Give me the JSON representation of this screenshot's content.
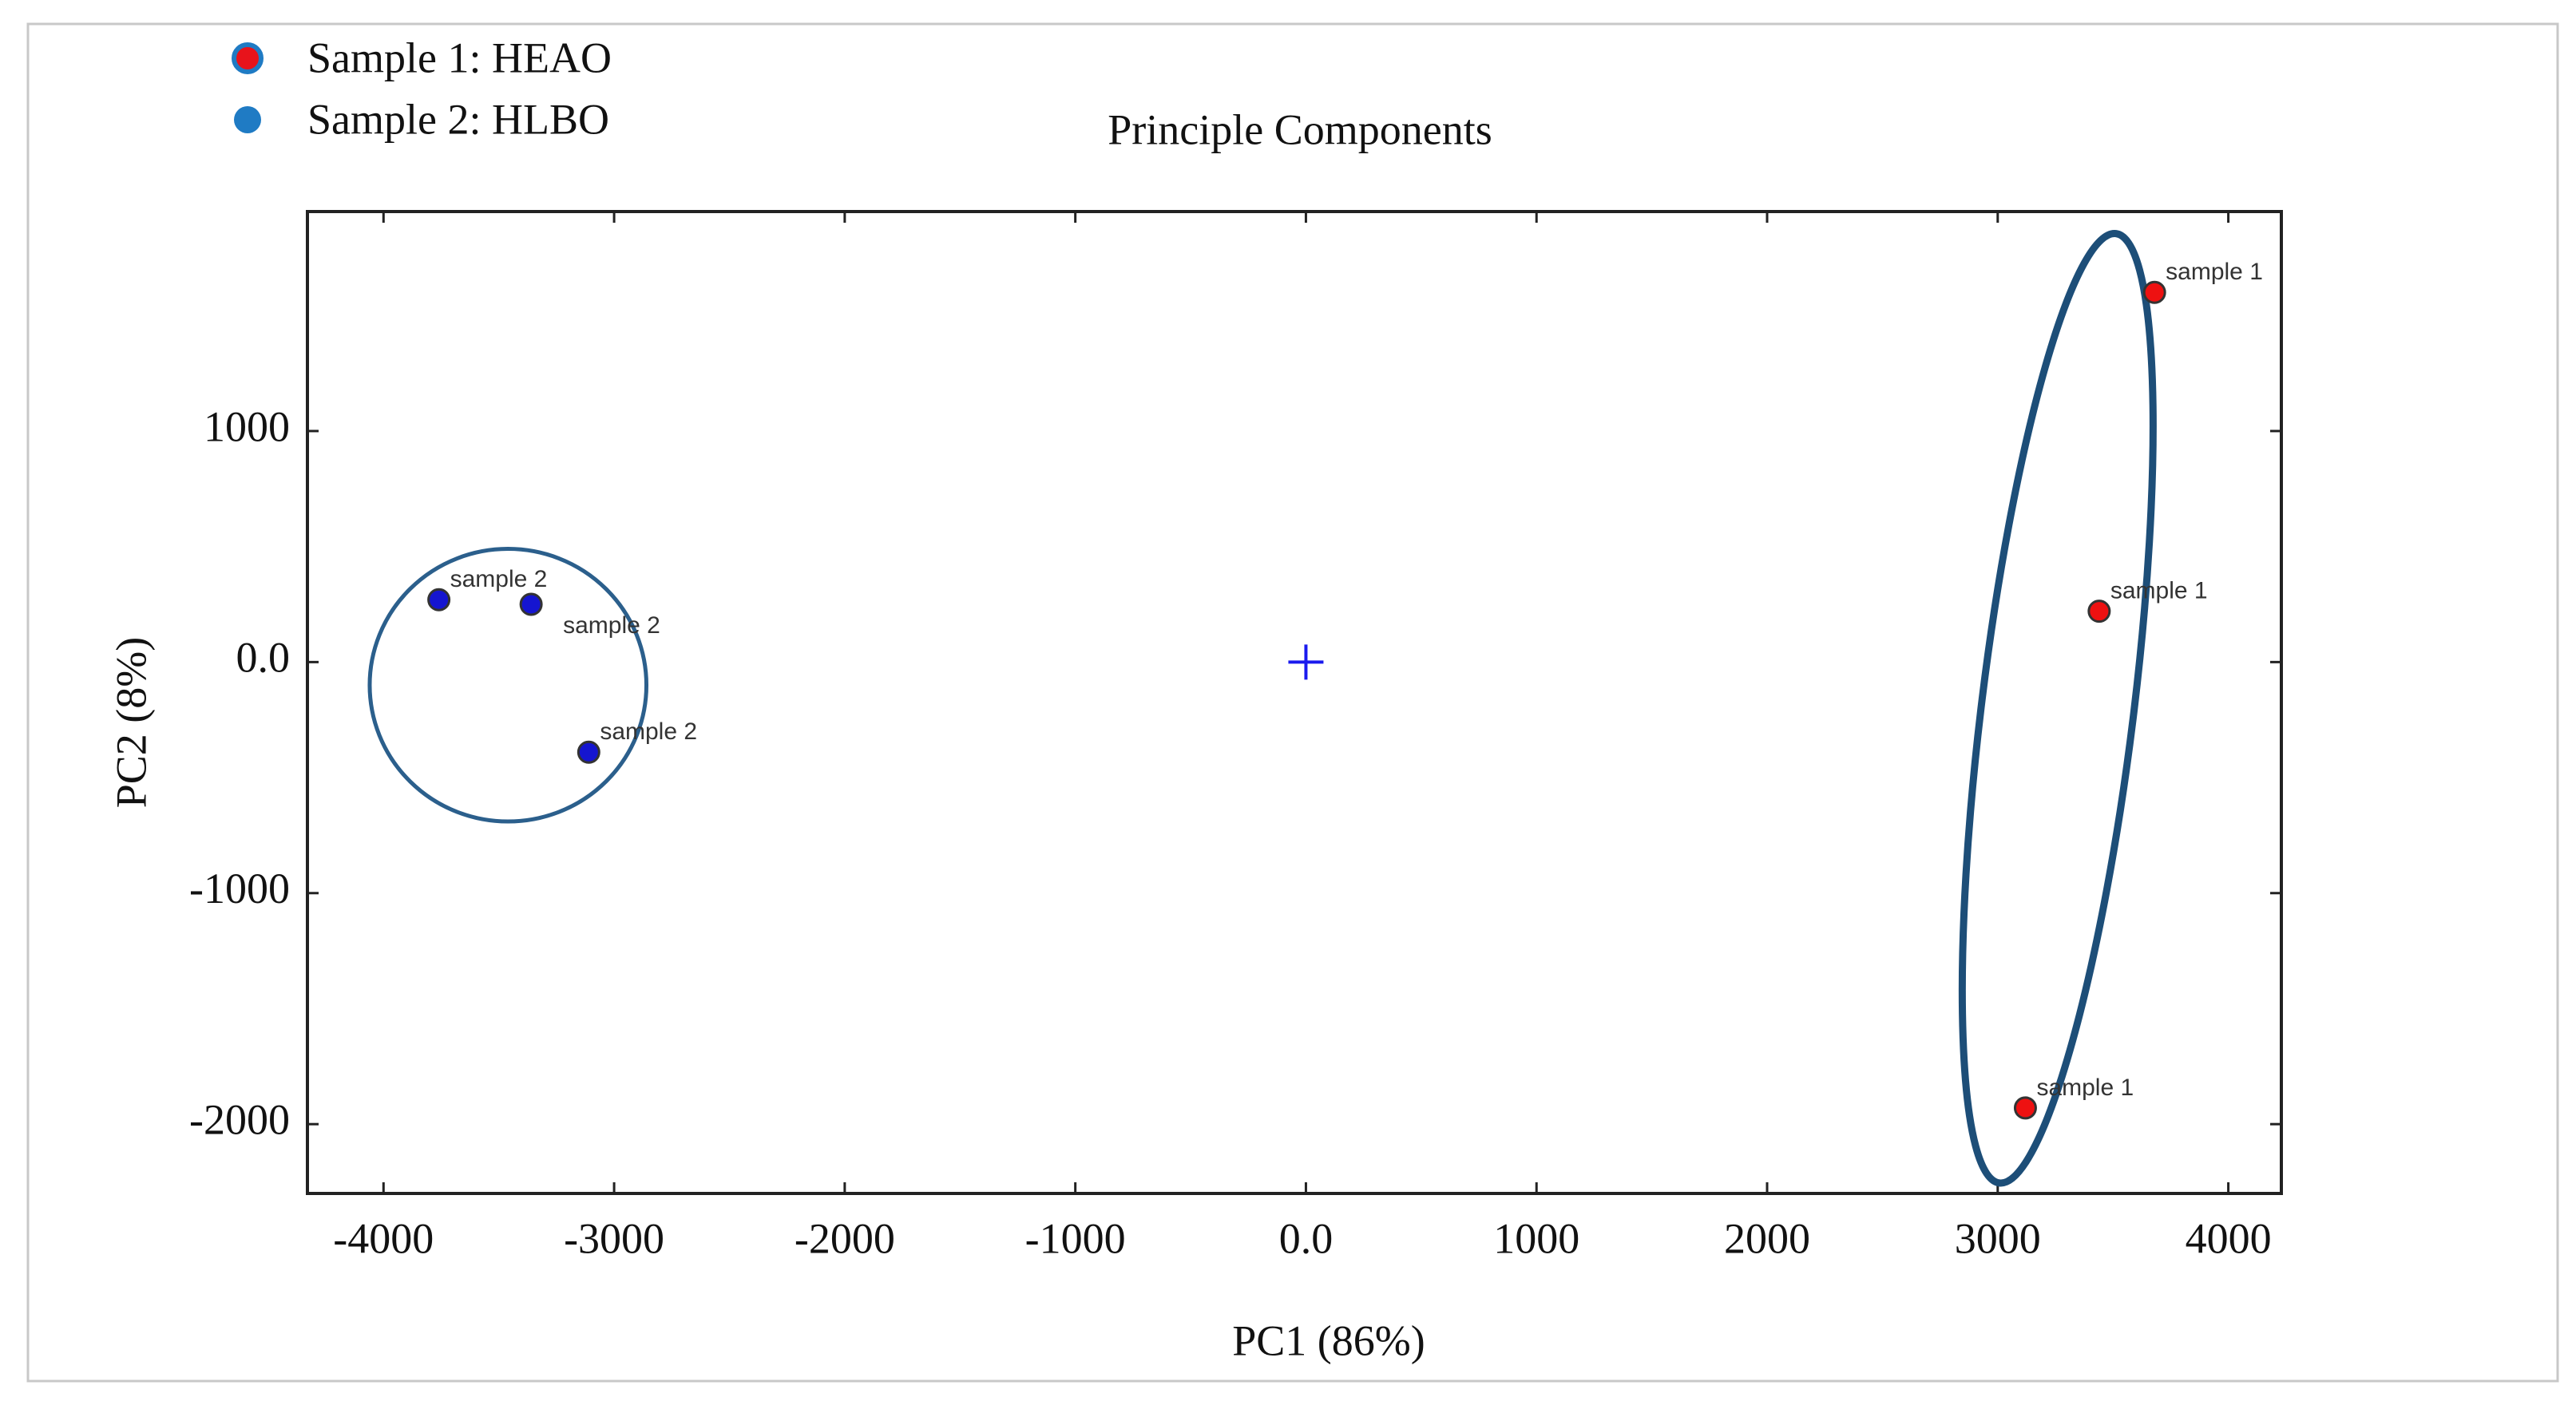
{
  "chart_data": {
    "type": "scatter",
    "title": "Principle Components",
    "xlabel": "PC1 (86%)",
    "ylabel": "PC2 (8%)",
    "xlim": [
      -4330,
      4230
    ],
    "ylim": [
      -2300,
      1950
    ],
    "x_ticks": [
      -4000,
      -3000,
      -2000,
      -1000,
      0,
      1000,
      2000,
      3000,
      4000
    ],
    "x_tick_labels": [
      "-4000",
      "-3000",
      "-2000",
      "-1000",
      "0.0",
      "1000",
      "2000",
      "3000",
      "4000"
    ],
    "y_ticks": [
      1000,
      0,
      -1000,
      -2000
    ],
    "y_tick_labels": [
      "1000",
      "0.0",
      "-1000",
      "-2000"
    ],
    "legend_position": "top-left",
    "legend": [
      {
        "label": "Sample 1: HEAO",
        "color": "#e8131b"
      },
      {
        "label": "Sample 2: HLBO",
        "color": "#1f7bc4"
      }
    ],
    "series": [
      {
        "name": "Sample 1: HEAO",
        "color": "#ee1111",
        "points": [
          {
            "x": 3680,
            "y": 1600,
            "label": "sample 1"
          },
          {
            "x": 3440,
            "y": 220,
            "label": "sample 1"
          },
          {
            "x": 3120,
            "y": -1930,
            "label": "sample 1"
          }
        ],
        "ellipse": {
          "cx": 3260,
          "cy": -200,
          "rx": 330,
          "ry": 2070,
          "rotation_deg": 7
        }
      },
      {
        "name": "Sample 2: HLBO",
        "color": "#1515d0",
        "points": [
          {
            "x": -3760,
            "y": 270,
            "label": "sample 2"
          },
          {
            "x": -3360,
            "y": 250,
            "label": "sample 2"
          },
          {
            "x": -3110,
            "y": -390,
            "label": "sample 2"
          }
        ],
        "ellipse": {
          "cx": -3460,
          "cy": -100,
          "rx": 600,
          "ry": 590,
          "rotation_deg": 0
        }
      }
    ],
    "center_marker": {
      "x": 0,
      "y": 0,
      "symbol": "+",
      "color": "#1a1aee"
    }
  }
}
